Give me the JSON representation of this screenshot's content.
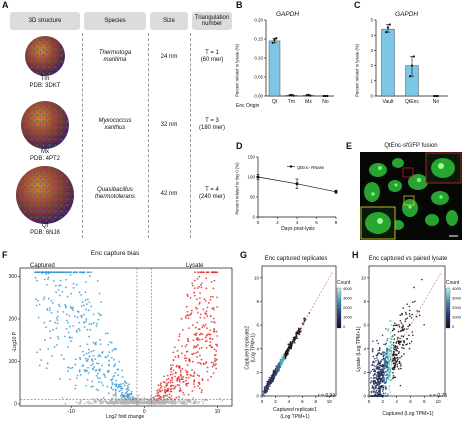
{
  "panelA": {
    "label": "A",
    "headers": [
      "3D structure",
      "Species",
      "Size",
      "Triangulation number"
    ],
    "rows": [
      {
        "abbr": "Tm",
        "pdb": "PDB: 3DKT",
        "species_line1": "Thermotoga",
        "species_line2": "maritima",
        "size": "24 nm",
        "tri_line1": "T = 1",
        "tri_line2": "(60 mer)"
      },
      {
        "abbr": "Mx",
        "pdb": "PDB: 4PT2",
        "species_line1": "Myxococcus",
        "species_line2": "xanthus",
        "size": "32 nm",
        "tri_line1": "T = 3",
        "tri_line2": "(180 mer)"
      },
      {
        "abbr": "Qt",
        "pdb": "PDB: 6NJ8",
        "species_line1": "Quasibacillus",
        "species_line2": "thermotolerans",
        "size": "42 nm",
        "tri_line1": "T = 4",
        "tri_line2": "(240 mer)"
      }
    ]
  },
  "panelB": {
    "label": "B",
    "chart_data": {
      "type": "bar",
      "title": "GAPDH",
      "ylabel": "Percent related to lysate (%)",
      "categories": [
        "Qt",
        "Tm",
        "Mx",
        "No"
      ],
      "category_prefix": "Enc Origin",
      "values": [
        0.145,
        0.002,
        0.002,
        0.0
      ],
      "points": [
        [
          0.14,
          0.148,
          0.152
        ],
        [
          0.002,
          0.003,
          0.001
        ],
        [
          0.002,
          0.003,
          0.001
        ],
        [
          0.0,
          0.0,
          0.0
        ]
      ],
      "yticks": [
        "0.00",
        "0.05",
        "0.10",
        "0.15",
        "0.20"
      ],
      "ylim": [
        0,
        0.2
      ]
    }
  },
  "panelC": {
    "label": "C",
    "chart_data": {
      "type": "bar",
      "title": "GAPDH",
      "ylabel": "Percent related to lysate (%)",
      "categories": [
        "Vault",
        "QtEnc",
        "No"
      ],
      "values": [
        4.4,
        2.0,
        0.0
      ],
      "points": [
        [
          4.2,
          4.5,
          4.7
        ],
        [
          1.3,
          2.0,
          2.6
        ],
        [
          0.0,
          0.0,
          0.0
        ]
      ],
      "yticks": [
        "0",
        "1",
        "2",
        "3",
        "4",
        "5"
      ],
      "ylim": [
        0,
        5
      ]
    }
  },
  "panelD": {
    "label": "D",
    "chart_data": {
      "type": "line",
      "ylabel": "Percent related to day 0 (%)",
      "xlabel": "Days post-lysis",
      "legend": "QtEnc- RNase",
      "x": [
        0,
        4,
        8
      ],
      "y": [
        100,
        83,
        63
      ],
      "err": [
        6,
        12,
        4
      ],
      "xticks": [
        "0",
        "2",
        "4",
        "6",
        "8"
      ],
      "yticks": [
        "0",
        "50",
        "100",
        "150"
      ],
      "xlim": [
        0,
        8
      ],
      "ylim": [
        0,
        150
      ]
    }
  },
  "panelE": {
    "label": "E",
    "title": "QtEnc-sfGFP fusion"
  },
  "panelF": {
    "label": "F",
    "chart_data": {
      "type": "scatter",
      "title": "Enc capture bias",
      "left_label": "Captured",
      "right_label": "Lysate",
      "xlabel": "Log2 fold change",
      "ylabel": "-Log10 P",
      "xticks": [
        "-10",
        "0",
        "10"
      ],
      "yticks": [
        "0",
        "100",
        "200",
        "300"
      ],
      "xlim": [
        -17,
        12
      ],
      "ylim": [
        -5,
        320
      ],
      "colors": {
        "captured": "#3a9bd6",
        "lysate": "#e03030",
        "ns": "#b5b5b5"
      }
    }
  },
  "panelG": {
    "label": "G",
    "chart_data": {
      "type": "scatter",
      "title": "Enc captured replicates",
      "xlabel": "Captured replicate1",
      "xlabel2": "(Log TPM+1)",
      "ylabel": "Captured replicate2",
      "ylabel2": "(Log TPM+1)",
      "r": "r = 0.99",
      "xticks": [
        "0",
        "2",
        "4",
        "6",
        "8",
        "10"
      ],
      "yticks": [
        "0",
        "2",
        "4",
        "6",
        "8",
        "10"
      ],
      "xlim": [
        0,
        11
      ],
      "ylim": [
        0,
        11
      ],
      "colorbar": {
        "title": "Count",
        "ticks": [
          "4000",
          "3000",
          "2000",
          "1000",
          "0"
        ]
      }
    }
  },
  "panelH": {
    "label": "H",
    "chart_data": {
      "type": "scatter",
      "title": "Enc captured vs paired lysate",
      "xlabel": "Captured (Log TPM+1)",
      "ylabel": "Lysate (Log TPM+1)",
      "r": "r = 0.75",
      "xticks": [
        "0",
        "2",
        "4",
        "6",
        "8",
        "10"
      ],
      "yticks": [
        "0",
        "2",
        "4",
        "6",
        "8",
        "10"
      ],
      "xlim": [
        0,
        11
      ],
      "ylim": [
        0,
        11
      ],
      "colorbar": {
        "title": "Count",
        "ticks": [
          "4000",
          "3000",
          "2000",
          "1000",
          "0"
        ]
      }
    }
  }
}
